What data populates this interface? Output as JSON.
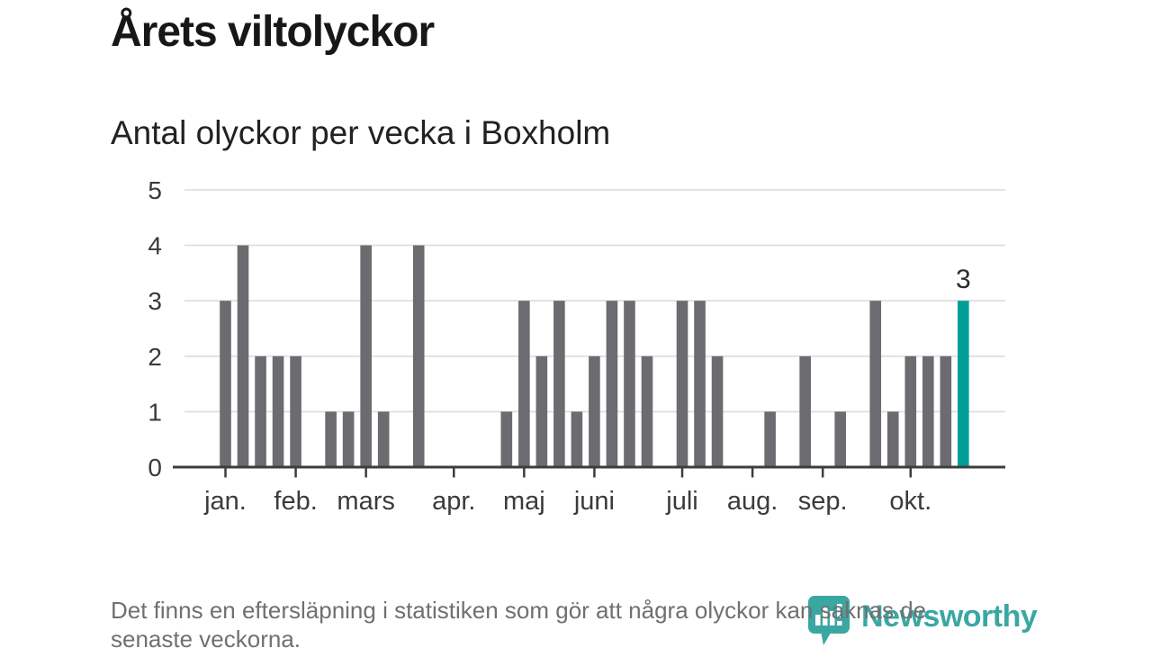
{
  "header": {
    "title": "Årets viltolyckor",
    "subtitle": "Antal olyckor per vecka i Boxholm"
  },
  "chart_data": {
    "type": "bar",
    "title": "Årets viltolyckor",
    "subtitle": "Antal olyckor per vecka i Boxholm",
    "x_unit": "week",
    "x_start_week": 1,
    "values": [
      3,
      4,
      2,
      2,
      2,
      0,
      1,
      1,
      4,
      1,
      0,
      4,
      0,
      0,
      0,
      0,
      1,
      3,
      2,
      3,
      1,
      2,
      3,
      3,
      2,
      0,
      3,
      3,
      2,
      0,
      0,
      1,
      0,
      2,
      0,
      1,
      0,
      3,
      1,
      2,
      2,
      2,
      3
    ],
    "highlight_last_index": 42,
    "last_value_label": "3",
    "month_ticks": [
      {
        "label": "jan.",
        "week": 1
      },
      {
        "label": "feb.",
        "week": 5
      },
      {
        "label": "mars",
        "week": 9
      },
      {
        "label": "apr.",
        "week": 14
      },
      {
        "label": "maj",
        "week": 18
      },
      {
        "label": "juni",
        "week": 22
      },
      {
        "label": "juli",
        "week": 27
      },
      {
        "label": "aug.",
        "week": 31
      },
      {
        "label": "sep.",
        "week": 35
      },
      {
        "label": "okt.",
        "week": 40
      }
    ],
    "yticks": [
      0,
      1,
      2,
      3,
      4,
      5
    ],
    "ylim": [
      0,
      5
    ],
    "grid": true,
    "legend_position": "none"
  },
  "colors": {
    "bar": "#6b6b70",
    "highlight": "#009e98",
    "axis": "#3d3d3d",
    "grid": "#dcdcdc",
    "tick_label": "#3b3b3b",
    "annotation": "#2b2b2b",
    "title": "#171717",
    "subtitle": "#222222",
    "footnote": "#707070",
    "brand": "#3aa7a2"
  },
  "footer": {
    "lines": [
      "Det finns en eftersläpning i statistiken som gör att några olyckor kan saknas de",
      "senaste veckorna."
    ],
    "logo_text": "Newsworthy"
  }
}
